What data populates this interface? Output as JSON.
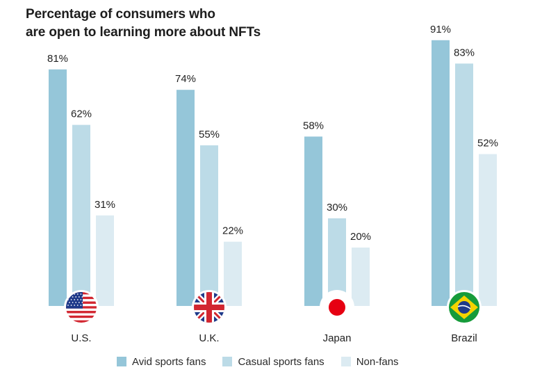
{
  "chart_data": {
    "type": "bar",
    "title_lines": [
      "Percentage of consumers who",
      "are open to learning more about NFTs"
    ],
    "categories": [
      "U.S.",
      "U.K.",
      "Japan",
      "Brazil"
    ],
    "category_icons": [
      "us-flag-icon",
      "uk-flag-icon",
      "japan-flag-icon",
      "brazil-flag-icon"
    ],
    "series": [
      {
        "name": "Avid sports fans",
        "values": [
          81,
          74,
          58,
          91
        ],
        "color": "#95c6d9"
      },
      {
        "name": "Casual sports fans",
        "values": [
          62,
          55,
          30,
          83
        ],
        "color": "#bcdbe7"
      },
      {
        "name": "Non-fans",
        "values": [
          31,
          22,
          20,
          52
        ],
        "color": "#dcebf2"
      }
    ],
    "value_suffix": "%",
    "ylim": [
      0,
      100
    ],
    "legend_position": "bottom",
    "grid": false
  }
}
